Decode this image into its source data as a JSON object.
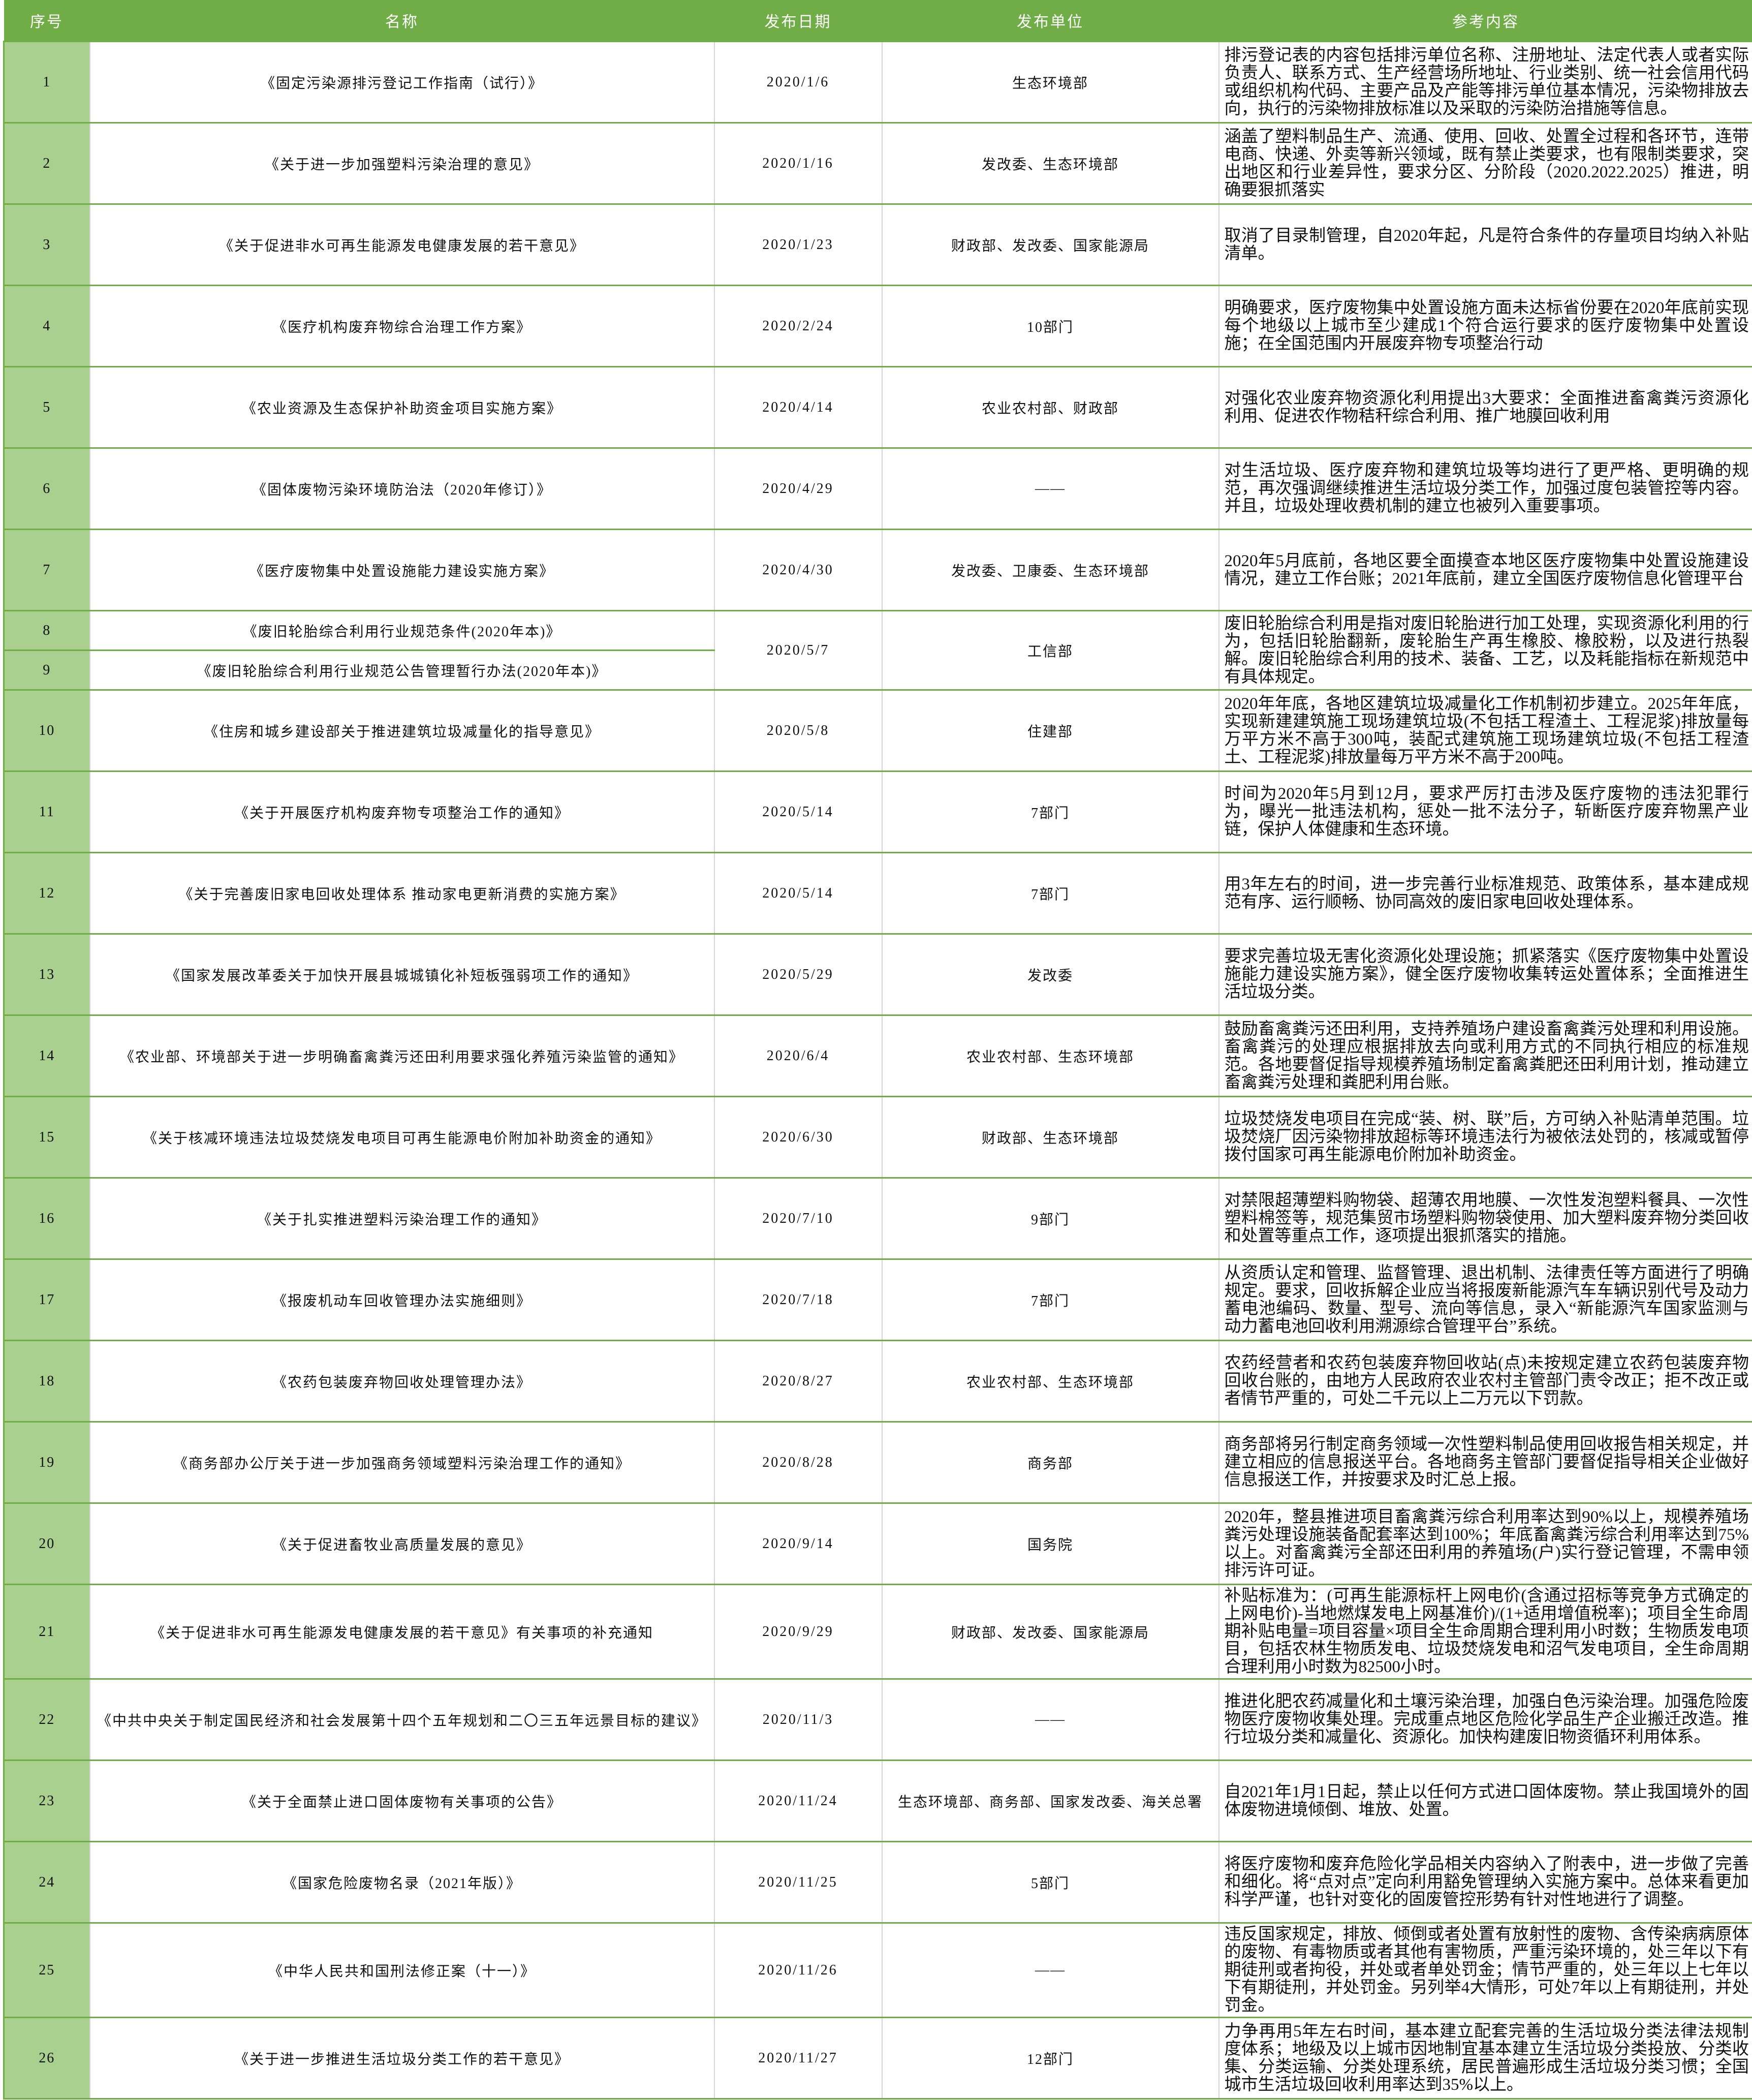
{
  "colors": {
    "header_bg": "#70ad47",
    "index_col_bg": "#a9d08e",
    "row_border": "#70ad47"
  },
  "headers": {
    "no": "序号",
    "name": "名称",
    "date": "发布日期",
    "unit": "发布单位",
    "ref": "参考内容"
  },
  "rows": [
    {
      "no": "1",
      "name": "《固定污染源排污登记工作指南（试行）》",
      "date": "2020/1/6",
      "unit": "生态环境部",
      "ref": "排污登记表的内容包括排污单位名称、注册地址、法定代表人或者实际负责人、联系方式、生产经营场所地址、行业类别、统一社会信用代码或组织机构代码、主要产品及产能等排污单位基本情况，污染物排放去向，执行的污染物排放标准以及采取的污染防治措施等信息。"
    },
    {
      "no": "2",
      "name": "《关于进一步加强塑料污染治理的意见》",
      "date": "2020/1/16",
      "unit": "发改委、生态环境部",
      "ref": "涵盖了塑料制品生产、流通、使用、回收、处置全过程和各环节，连带电商、快递、外卖等新兴领域，既有禁止类要求，也有限制类要求，突出地区和行业差异性，要求分区、分阶段（2020.2022.2025）推进，明确要狠抓落实"
    },
    {
      "no": "3",
      "name": "《关于促进非水可再生能源发电健康发展的若干意见》",
      "date": "2020/1/23",
      "unit": "财政部、发改委、国家能源局",
      "ref": "取消了目录制管理，自2020年起，凡是符合条件的存量项目均纳入补贴清单。"
    },
    {
      "no": "4",
      "name": "《医疗机构废弃物综合治理工作方案》",
      "date": "2020/2/24",
      "unit": "10部门",
      "ref": "明确要求，医疗废物集中处置设施方面未达标省份要在2020年底前实现每个地级以上城市至少建成1个符合运行要求的医疗废物集中处置设施；在全国范围内开展废弃物专项整治行动"
    },
    {
      "no": "5",
      "name": "《农业资源及生态保护补助资金项目实施方案》",
      "date": "2020/4/14",
      "unit": "农业农村部、财政部",
      "ref": "对强化农业废弃物资源化利用提出3大要求：全面推进畜禽粪污资源化利用、促进农作物秸秆综合利用、推广地膜回收利用"
    },
    {
      "no": "6",
      "name": "《固体废物污染环境防治法（2020年修订）》",
      "date": "2020/4/29",
      "unit": "——",
      "ref": "对生活垃圾、医疗废弃物和建筑垃圾等均进行了更严格、更明确的规范，再次强调继续推进生活垃圾分类工作，加强过度包装管控等内容。并且，垃圾处理收费机制的建立也被列入重要事项。"
    },
    {
      "no": "7",
      "name": "《医疗废物集中处置设施能力建设实施方案》",
      "date": "2020/4/30",
      "unit": "发改委、卫康委、生态环境部",
      "ref": "2020年5月底前，各地区要全面摸查本地区医疗废物集中处置设施建设情况，建立工作台账；2021年底前，建立全国医疗废物信息化管理平台"
    },
    {
      "no": "8",
      "name": "《废旧轮胎综合利用行业规范条件(2020年本)》",
      "date": "2020/5/7",
      "unit": "工信部",
      "ref": "废旧轮胎综合利用是指对废旧轮胎进行加工处理，实现资源化利用的行为，包括旧轮胎翻新，废轮胎生产再生橡胶、橡胶粉，以及进行热裂解。废旧轮胎综合利用的技术、装备、工艺，以及耗能指标在新规范中有具体规定。"
    },
    {
      "no": "9",
      "name": "《废旧轮胎综合利用行业规范公告管理暂行办法(2020年本)》"
    },
    {
      "no": "10",
      "name": "《住房和城乡建设部关于推进建筑垃圾减量化的指导意见》",
      "date": "2020/5/8",
      "unit": "住建部",
      "ref": "2020年年底，各地区建筑垃圾减量化工作机制初步建立。2025年年底，实现新建建筑施工现场建筑垃圾(不包括工程渣土、工程泥浆)排放量每万平方米不高于300吨，装配式建筑施工现场建筑垃圾(不包括工程渣土、工程泥浆)排放量每万平方米不高于200吨。"
    },
    {
      "no": "11",
      "name": "《关于开展医疗机构废弃物专项整治工作的通知》",
      "date": "2020/5/14",
      "unit": "7部门",
      "ref": "时间为2020年5月到12月，要求严厉打击涉及医疗废物的违法犯罪行为，曝光一批违法机构，惩处一批不法分子，斩断医疗废弃物黑产业链，保护人体健康和生态环境。"
    },
    {
      "no": "12",
      "name": "《关于完善废旧家电回收处理体系  推动家电更新消费的实施方案》",
      "date": "2020/5/14",
      "unit": "7部门",
      "ref": "用3年左右的时间，进一步完善行业标准规范、政策体系，基本建成规范有序、运行顺畅、协同高效的废旧家电回收处理体系。"
    },
    {
      "no": "13",
      "name": "《国家发展改革委关于加快开展县城城镇化补短板强弱项工作的通知》",
      "date": "2020/5/29",
      "unit": "发改委",
      "ref": "要求完善垃圾无害化资源化处理设施；抓紧落实《医疗废物集中处置设施能力建设实施方案》，健全医疗废物收集转运处置体系；全面推进生活垃圾分类。"
    },
    {
      "no": "14",
      "name": "《农业部、环境部关于进一步明确畜禽粪污还田利用要求强化养殖污染监管的通知》",
      "date": "2020/6/4",
      "unit": "农业农村部、生态环境部",
      "ref": "鼓励畜禽粪污还田利用，支持养殖场户建设畜禽粪污处理和利用设施。畜禽粪污的处理应根据排放去向或利用方式的不同执行相应的标准规范。各地要督促指导规模养殖场制定畜禽粪肥还田利用计划，推动建立畜禽粪污处理和粪肥利用台账。"
    },
    {
      "no": "15",
      "name": "《关于核减环境违法垃圾焚烧发电项目可再生能源电价附加补助资金的通知》",
      "date": "2020/6/30",
      "unit": "财政部、生态环境部",
      "ref": "垃圾焚烧发电项目在完成“装、树、联”后，方可纳入补贴清单范围。垃圾焚烧厂因污染物排放超标等环境违法行为被依法处罚的，核减或暂停拨付国家可再生能源电价附加补助资金。"
    },
    {
      "no": "16",
      "name": "《关于扎实推进塑料污染治理工作的通知》",
      "date": "2020/7/10",
      "unit": "9部门",
      "ref": "对禁限超薄塑料购物袋、超薄农用地膜、一次性发泡塑料餐具、一次性塑料棉签等，规范集贸市场塑料购物袋使用、加大塑料废弃物分类回收和处置等重点工作，逐项提出狠抓落实的措施。"
    },
    {
      "no": "17",
      "name": "《报废机动车回收管理办法实施细则》",
      "date": "2020/7/18",
      "unit": "7部门",
      "ref": "从资质认定和管理、监督管理、退出机制、法律责任等方面进行了明确规定。要求，回收拆解企业应当将报废新能源汽车车辆识别代号及动力蓄电池编码、数量、型号、流向等信息，录入“新能源汽车国家监测与动力蓄电池回收利用溯源综合管理平台”系统。"
    },
    {
      "no": "18",
      "name": "《农药包装废弃物回收处理管理办法》",
      "date": "2020/8/27",
      "unit": "农业农村部、生态环境部",
      "ref": "农药经营者和农药包装废弃物回收站(点)未按规定建立农药包装废弃物回收台账的，由地方人民政府农业农村主管部门责令改正；拒不改正或者情节严重的，可处二千元以上二万元以下罚款。"
    },
    {
      "no": "19",
      "name": "《商务部办公厅关于进一步加强商务领域塑料污染治理工作的通知》",
      "date": "2020/8/28",
      "unit": "商务部",
      "ref": "商务部将另行制定商务领域一次性塑料制品使用回收报告相关规定，并建立相应的信息报送平台。各地商务主管部门要督促指导相关企业做好信息报送工作，并按要求及时汇总上报。"
    },
    {
      "no": "20",
      "name": "《关于促进畜牧业高质量发展的意见》",
      "date": "2020/9/14",
      "unit": "国务院",
      "ref": "2020年，整县推进项目畜禽粪污综合利用率达到90%以上，规模养殖场粪污处理设施装备配套率达到100%；年底畜禽粪污综合利用率达到75%以上。对畜禽粪污全部还田利用的养殖场(户)实行登记管理，不需申领排污许可证。"
    },
    {
      "no": "21",
      "name": "《关于促进非水可再生能源发电健康发展的若干意见》有关事项的补充通知",
      "date": "2020/9/29",
      "unit": "财政部、发改委、国家能源局",
      "ref": "补贴标准为：(可再生能源标杆上网电价(含通过招标等竞争方式确定的上网电价)-当地燃煤发电上网基准价)/(1+适用增值税率)；项目全生命周期补贴电量=项目容量×项目全生命周期合理利用小时数；生物质发电项目，包括农林生物质发电、垃圾焚烧发电和沼气发电项目，全生命周期合理利用小时数为82500小时。"
    },
    {
      "no": "22",
      "name": "《中共中央关于制定国民经济和社会发展第十四个五年规划和二〇三五年远景目标的建议》",
      "date": "2020/11/3",
      "unit": "——",
      "ref": "推进化肥农药减量化和土壤污染治理，加强白色污染治理。加强危险废物医疗废物收集处理。完成重点地区危险化学品生产企业搬迁改造。推行垃圾分类和减量化、资源化。加快构建废旧物资循环利用体系。"
    },
    {
      "no": "23",
      "name": "《关于全面禁止进口固体废物有关事项的公告》",
      "date": "2020/11/24",
      "unit": "生态环境部、商务部、国家发改委、海关总署",
      "ref": "自2021年1月1日起，禁止以任何方式进口固体废物。禁止我国境外的固体废物进境倾倒、堆放、处置。"
    },
    {
      "no": "24",
      "name": "《国家危险废物名录（2021年版）》",
      "date": "2020/11/25",
      "unit": "5部门",
      "ref": "将医疗废物和废弃危险化学品相关内容纳入了附表中，进一步做了完善和细化。将“点对点”定向利用豁免管理纳入实施方案中。总体来看更加科学严谨，也针对变化的固废管控形势有针对性地进行了调整。"
    },
    {
      "no": "25",
      "name": "《中华人民共和国刑法修正案（十一）》",
      "date": "2020/11/26",
      "unit": "——",
      "ref": "违反国家规定，排放、倾倒或者处置有放射性的废物、含传染病病原体的废物、有毒物质或者其他有害物质，严重污染环境的，处三年以下有期徒刑或者拘役，并处或者单处罚金；情节严重的，处三年以上七年以下有期徒刑，并处罚金。另列举4大情形，可处7年以上有期徒刑，并处罚金。"
    },
    {
      "no": "26",
      "name": "《关于进一步推进生活垃圾分类工作的若干意见》",
      "date": "2020/11/27",
      "unit": "12部门",
      "ref": "力争再用5年左右时间，基本建立配套完善的生活垃圾分类法律法规制度体系；地级及以上城市因地制宜基本建立生活垃圾分类投放、分类收集、分类运输、分类处理系统，居民普遍形成生活垃圾分类习惯；全国城市生活垃圾回收利用率达到35%以上。"
    }
  ]
}
